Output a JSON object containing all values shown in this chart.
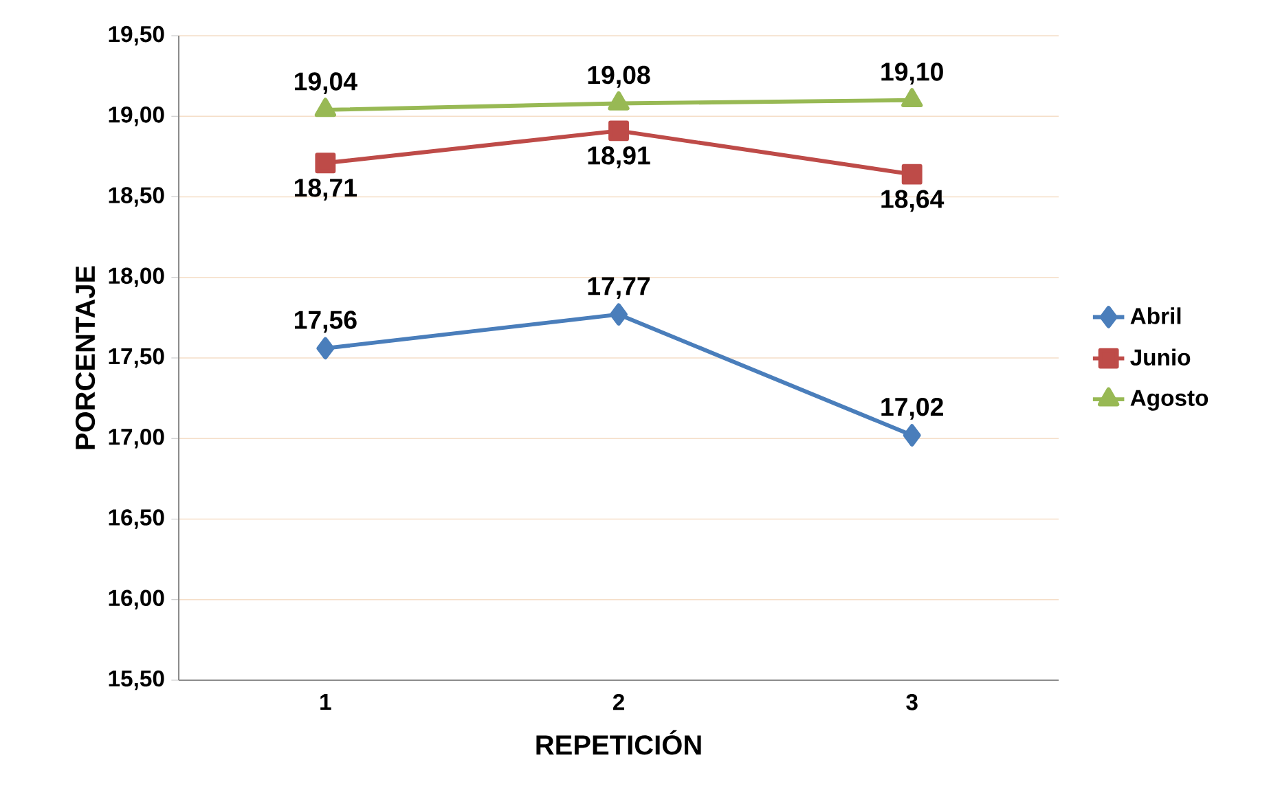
{
  "chart_data": {
    "type": "line",
    "xlabel": "REPETICIÓN",
    "ylabel": "PORCENTAJE",
    "categories": [
      "1",
      "2",
      "3"
    ],
    "series": [
      {
        "name": "Abril",
        "color": "#4a7ebb",
        "marker": "diamond",
        "values": [
          17.56,
          17.77,
          17.02
        ],
        "value_labels": [
          "17,56",
          "17,77",
          "17,02"
        ]
      },
      {
        "name": "Junio",
        "color": "#be4b48",
        "marker": "square",
        "values": [
          18.71,
          18.91,
          18.64
        ],
        "value_labels": [
          "18,71",
          "18,91",
          "18,64"
        ]
      },
      {
        "name": "Agosto",
        "color": "#98b954",
        "marker": "triangle",
        "values": [
          19.04,
          19.08,
          19.1
        ],
        "value_labels": [
          "19,04",
          "19,08",
          "19,10"
        ]
      }
    ],
    "ylim": [
      15.5,
      19.5
    ],
    "yticks": [
      {
        "value": 15.5,
        "label": "15,50"
      },
      {
        "value": 16.0,
        "label": "16,00"
      },
      {
        "value": 16.5,
        "label": "16,50"
      },
      {
        "value": 17.0,
        "label": "17,00"
      },
      {
        "value": 17.5,
        "label": "17,50"
      },
      {
        "value": 18.0,
        "label": "18,00"
      },
      {
        "value": 18.5,
        "label": "18,50"
      },
      {
        "value": 19.0,
        "label": "19,00"
      },
      {
        "value": 19.5,
        "label": "19,50"
      }
    ],
    "grid": "y",
    "legend": "right"
  }
}
